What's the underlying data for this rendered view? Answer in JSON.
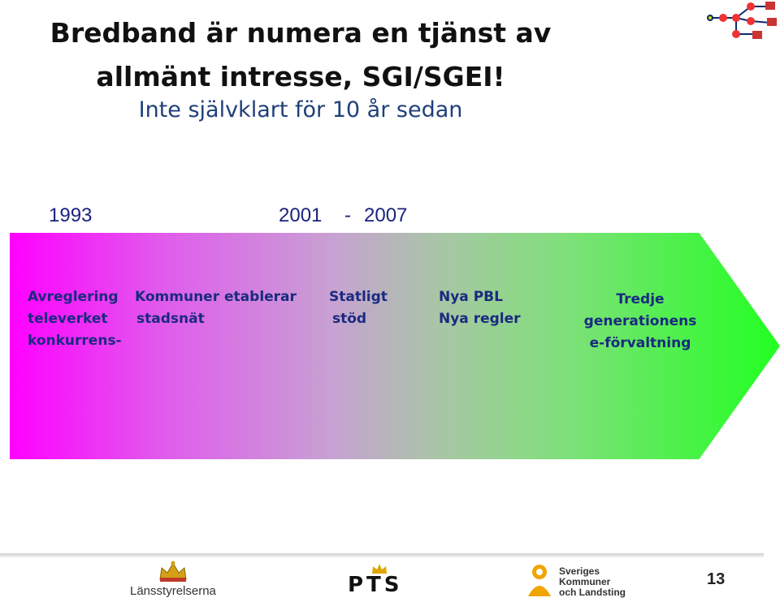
{
  "title": {
    "line1": "Bredband är numera en tjänst av",
    "line2": "allmänt intresse, SGI/SGEI!",
    "subtitle": "Inte självklart för 10 år sedan"
  },
  "timeline": {
    "year_start": "1993",
    "year_mid": "2001",
    "dash": "-",
    "year_end": "2007"
  },
  "arrow_labels": {
    "col1": [
      "Avreglering",
      "televerket",
      "konkurrens-"
    ],
    "col2": [
      "Kommuner etablerar",
      "stadsnät"
    ],
    "col3": [
      "Statligt",
      "stöd"
    ],
    "col4": [
      "Nya PBL",
      "Nya regler"
    ],
    "col5": [
      "Tredje",
      "generationens",
      "e-förvaltning"
    ]
  },
  "colors": {
    "arrow_start": "#ff00ff",
    "arrow_end": "#22ff22",
    "label_text": "#1a2a80"
  },
  "footer": {
    "logo_lansstyrelserna": "Länsstyrelserna",
    "logo_pts": "PTS",
    "logo_skl": [
      "Sveriges",
      "Kommuner",
      "och Landsting"
    ],
    "page_number": "13"
  },
  "icons": [
    "network-graph-icon",
    "crown-icon",
    "pts-crown-icon",
    "skl-figure-icon"
  ]
}
